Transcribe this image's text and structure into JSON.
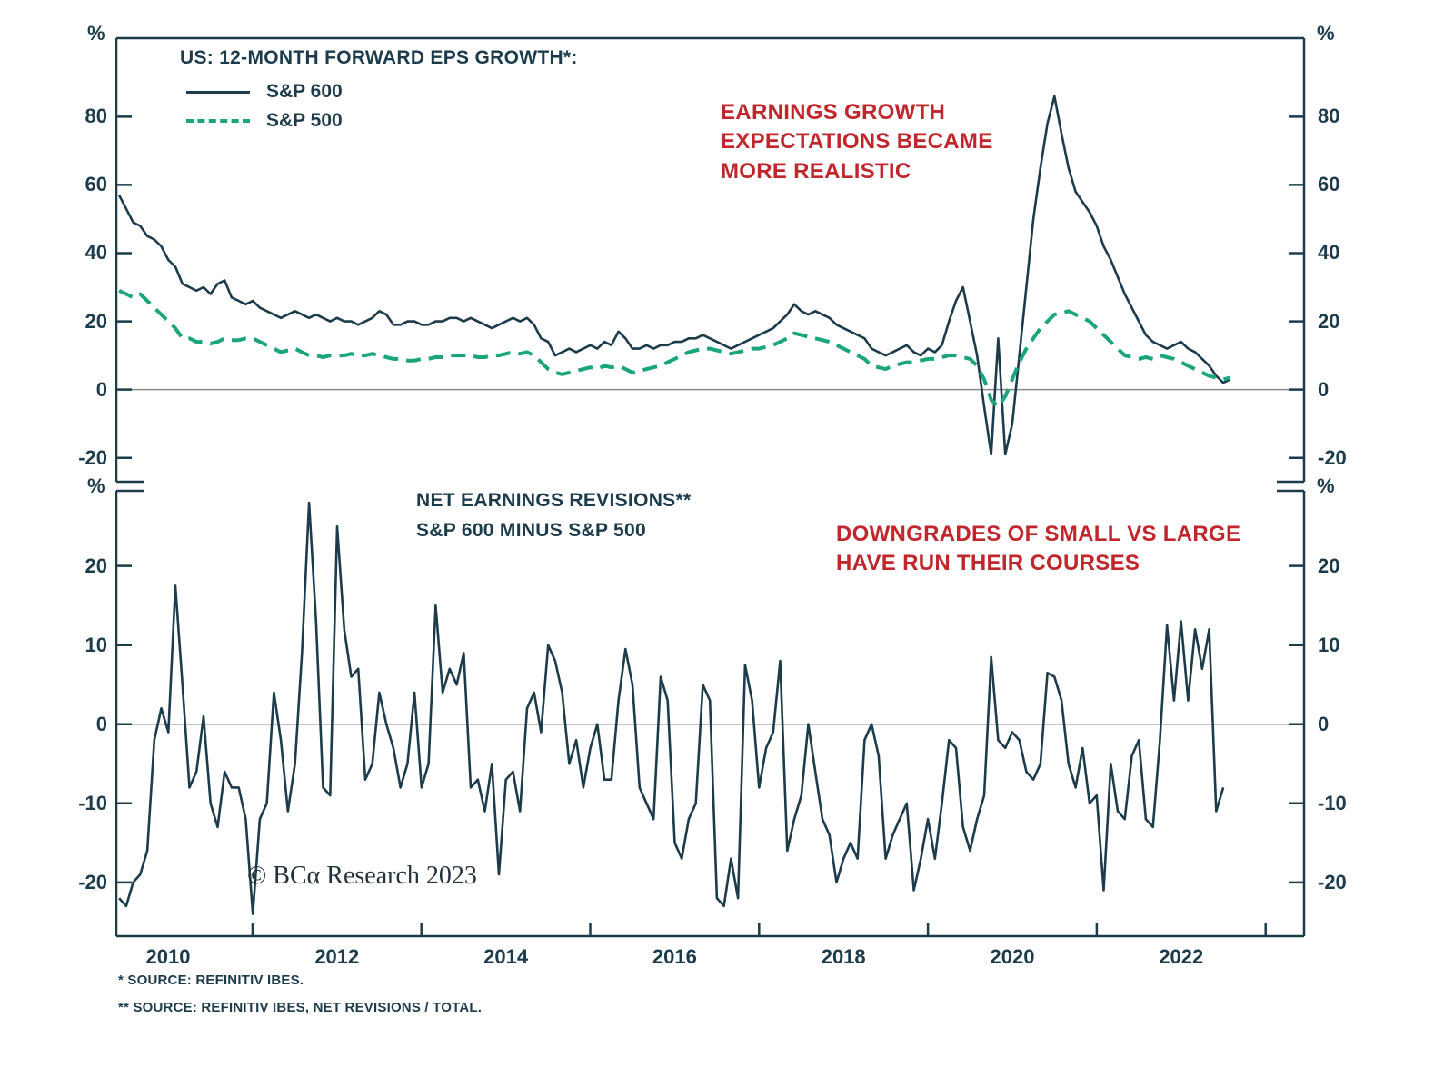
{
  "colors": {
    "dark": "#1c3b4b",
    "green": "#1aa57c",
    "red": "#c0262c",
    "zero_line": "#8a8a8a"
  },
  "watermark": "© BCα Research 2023",
  "footnotes": [
    "*  SOURCE: REFINITIV IBES.",
    "** SOURCE: REFINITIV IBES, NET REVISIONS / TOTAL."
  ],
  "x_axis": {
    "tick_labels": [
      "2010",
      "2012",
      "2014",
      "2016",
      "2018",
      "2020",
      "2022"
    ],
    "tick_years": [
      2010,
      2012,
      2014,
      2016,
      2018,
      2020,
      2022
    ],
    "minor_tick_years": [
      2011,
      2013,
      2015,
      2017,
      2019,
      2021,
      2023
    ],
    "range": [
      2009.4,
      2023.4
    ]
  },
  "chart_data": [
    {
      "type": "line",
      "panel": "top",
      "title": "US: 12-MONTH FORWARD EPS GROWTH*:",
      "unit": "%",
      "annotation": "EARNINGS GROWTH\nEXPECTATIONS BECAME\nMORE REALISTIC",
      "ylim": [
        -27,
        103
      ],
      "yticks": [
        80,
        60,
        40,
        20,
        0,
        -20
      ],
      "x_start": 2009.42,
      "x_step": 0.0833,
      "legend_position": "top-left",
      "series": [
        {
          "name": "S&P 600",
          "style": "solid",
          "color": "#1c3b4b",
          "values": [
            57,
            53,
            49,
            48,
            45,
            44,
            42,
            38,
            36,
            31,
            30,
            29,
            30,
            28,
            31,
            32,
            27,
            26,
            25,
            26,
            24,
            23,
            22,
            21,
            22,
            23,
            22,
            21,
            22,
            21,
            20,
            21,
            20,
            20,
            19,
            20,
            21,
            23,
            22,
            19,
            19,
            20,
            20,
            19,
            19,
            20,
            20,
            21,
            21,
            20,
            21,
            20,
            19,
            18,
            19,
            20,
            21,
            20,
            21,
            19,
            15,
            14,
            10,
            11,
            12,
            11,
            12,
            13,
            12,
            14,
            13,
            17,
            15,
            12,
            12,
            13,
            12,
            13,
            13,
            14,
            14,
            15,
            15,
            16,
            15,
            14,
            13,
            12,
            13,
            14,
            15,
            16,
            17,
            18,
            20,
            22,
            25,
            23,
            22,
            23,
            22,
            21,
            19,
            18,
            17,
            16,
            15,
            12,
            11,
            10,
            11,
            12,
            13,
            11,
            10,
            12,
            11,
            13,
            20,
            26,
            30,
            20,
            10,
            -5,
            -19,
            15,
            -19,
            -10,
            10,
            30,
            50,
            65,
            78,
            86,
            75,
            65,
            58,
            55,
            52,
            48,
            42,
            38,
            33,
            28,
            24,
            20,
            16,
            14,
            13,
            12,
            13,
            14,
            12,
            11,
            9,
            7,
            4,
            2,
            3
          ]
        },
        {
          "name": "S&P 500",
          "style": "dashed",
          "color": "#1aa57c",
          "values": [
            29,
            28,
            27,
            28,
            26,
            24,
            22,
            20,
            18,
            15,
            15,
            14,
            14,
            13.5,
            14,
            15,
            14.5,
            14.5,
            15,
            15,
            14,
            13,
            12,
            11,
            11.5,
            12,
            11,
            10,
            10,
            9.5,
            10,
            10,
            10,
            10.5,
            10,
            10,
            10.5,
            10,
            9.5,
            9,
            9,
            8.5,
            8.5,
            9,
            9,
            9.5,
            9.5,
            10,
            10,
            10,
            10,
            9.5,
            9.5,
            10,
            10,
            10.5,
            11,
            10.5,
            11,
            10,
            8,
            6,
            5,
            4.5,
            5,
            5.5,
            6,
            6.5,
            6,
            7,
            6.5,
            7,
            6,
            5,
            5.5,
            6,
            6.5,
            7,
            8,
            9,
            10,
            11,
            11.5,
            12,
            12,
            11.5,
            11,
            10.5,
            11,
            11.5,
            12,
            12,
            12.5,
            13,
            14,
            15,
            16.5,
            16,
            15.5,
            15,
            14.5,
            14,
            13,
            12,
            11,
            10,
            9,
            7,
            6.5,
            6,
            7,
            7.5,
            8,
            8,
            8.5,
            9,
            9,
            9.5,
            10,
            10,
            9.5,
            9,
            7,
            3,
            -3,
            -5,
            -2,
            3,
            8,
            12,
            15,
            18,
            20,
            22,
            22.5,
            23,
            22,
            21,
            20,
            18,
            16,
            14,
            12,
            10,
            9.5,
            9,
            9.5,
            9,
            10,
            9.5,
            9,
            8,
            7,
            6,
            5,
            4,
            3.5,
            3,
            3.5
          ]
        }
      ]
    },
    {
      "type": "line",
      "panel": "bottom",
      "title": "NET EARNINGS REVISIONS**\nS&P 600 MINUS S&P 500",
      "unit": "%",
      "annotation": "DOWNGRADES OF SMALL VS LARGE\nHAVE RUN THEIR COURSES",
      "ylim": [
        -26.8,
        29.5
      ],
      "yticks": [
        20,
        10,
        0,
        -10,
        -20
      ],
      "x_start": 2009.42,
      "x_step": 0.0833,
      "series": [
        {
          "name": "S&P 600 minus S&P 500",
          "style": "solid",
          "color": "#1c3b4b",
          "values": [
            -22,
            -23,
            -20,
            -19,
            -16,
            -2,
            2,
            -1,
            17.5,
            5,
            -8,
            -6,
            1,
            -10,
            -13,
            -6,
            -8,
            -8,
            -12,
            -24,
            -12,
            -10,
            4,
            -2,
            -11,
            -5,
            9,
            28,
            13,
            -8,
            -9,
            25,
            12,
            6,
            7,
            -7,
            -5,
            4,
            0,
            -3,
            -8,
            -5,
            4,
            -8,
            -5,
            15,
            4,
            7,
            5,
            9,
            -8,
            -7,
            -11,
            -5,
            -19,
            -7,
            -6,
            -11,
            2,
            4,
            -1,
            10,
            8,
            4,
            -5,
            -2,
            -8,
            -3,
            0,
            -7,
            -7,
            3,
            9.5,
            5,
            -8,
            -10,
            -12,
            6,
            3,
            -15,
            -17,
            -12,
            -10,
            5,
            3,
            -22,
            -23,
            -17,
            -22,
            7.5,
            3,
            -8,
            -3,
            -1,
            8,
            -16,
            -12,
            -9,
            0,
            -6,
            -12,
            -14,
            -20,
            -17,
            -15,
            -17,
            -2,
            0,
            -4,
            -17,
            -14,
            -12,
            -10,
            -21,
            -17,
            -12,
            -17,
            -10,
            -2,
            -3,
            -13,
            -16,
            -12,
            -9,
            8.5,
            -2,
            -3,
            -1,
            -2,
            -6,
            -7,
            -5,
            6.5,
            6,
            3,
            -5,
            -8,
            -3,
            -10,
            -9,
            -21,
            -5,
            -11,
            -12,
            -4,
            -2,
            -12,
            -13,
            -2,
            12.5,
            3,
            13,
            3,
            12,
            7,
            12,
            -11,
            -8
          ]
        }
      ]
    }
  ]
}
